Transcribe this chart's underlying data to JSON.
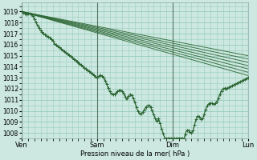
{
  "xlabel": "Pression niveau de la mer( hPa )",
  "bg_color": "#cce8e0",
  "grid_color": "#99ccbb",
  "line_color": "#2d6634",
  "marker_color": "#2d6634",
  "ylim_min": 1007.5,
  "ylim_max": 1019.5,
  "yticks": [
    1008,
    1009,
    1010,
    1011,
    1012,
    1013,
    1014,
    1015,
    1016,
    1017,
    1018,
    1019
  ],
  "day_labels": [
    "Ven",
    "Sam",
    "Dim",
    "Lun"
  ],
  "day_positions": [
    0,
    72,
    144,
    216
  ],
  "total_steps": 216,
  "ensemble_ends": [
    1013.2,
    1013.5,
    1013.8,
    1014.1,
    1014.4,
    1014.7,
    1015.0
  ],
  "ensemble_starts": [
    1019.0,
    1019.0,
    1019.0,
    1019.0,
    1019.0,
    1019.0,
    1019.0
  ]
}
